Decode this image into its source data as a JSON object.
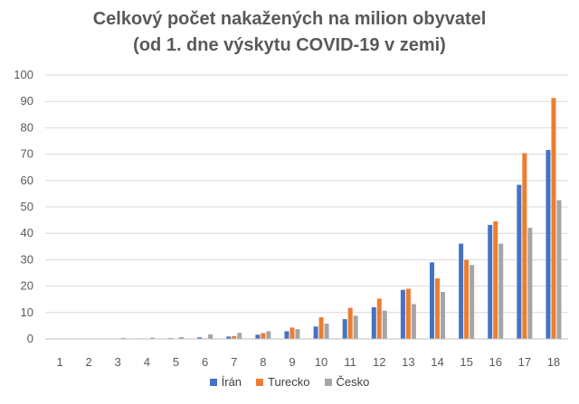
{
  "chart_data": {
    "type": "bar",
    "title": [
      "Celkový počet nakažených na milion obyvatel",
      "(od 1. dne výskytu COVID-19 v zemi)"
    ],
    "xlabel": "",
    "ylabel": "",
    "ylim": [
      0,
      100
    ],
    "yticks": [
      0,
      10,
      20,
      30,
      40,
      50,
      60,
      70,
      80,
      90,
      100
    ],
    "grid": true,
    "legend_position": "bottom",
    "categories": [
      "1",
      "2",
      "3",
      "4",
      "5",
      "6",
      "7",
      "8",
      "9",
      "10",
      "11",
      "12",
      "13",
      "14",
      "15",
      "16",
      "17",
      "18"
    ],
    "series": [
      {
        "name": "Írán",
        "color": "#4472C4",
        "values": [
          0.0,
          0.0,
          0.1,
          0.2,
          0.3,
          0.6,
          0.9,
          1.6,
          2.9,
          4.7,
          7.5,
          12.0,
          18.6,
          29.0,
          36.1,
          43.2,
          58.4,
          71.6
        ]
      },
      {
        "name": "Turecko",
        "color": "#ED7D31",
        "values": [
          0.0,
          0.0,
          0.0,
          0.0,
          0.0,
          0.2,
          1.1,
          2.2,
          4.3,
          8.2,
          11.8,
          15.3,
          19.0,
          23.0,
          30.0,
          44.6,
          70.4,
          91.3
        ]
      },
      {
        "name": "Česko",
        "color": "#A5A5A5",
        "values": [
          0.0,
          0.0,
          0.4,
          0.5,
          0.7,
          1.7,
          2.3,
          2.9,
          3.7,
          5.8,
          8.8,
          10.7,
          13.2,
          17.8,
          28.0,
          36.1,
          42.1,
          52.6
        ]
      }
    ]
  }
}
